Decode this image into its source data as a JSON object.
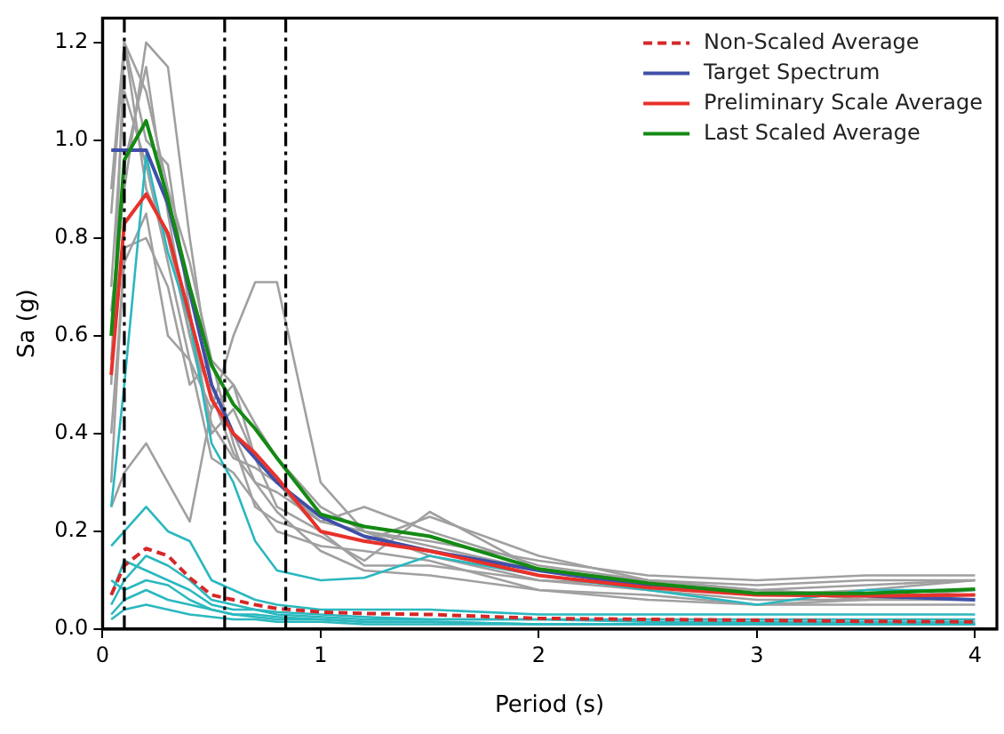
{
  "chart_data": {
    "type": "line",
    "xlabel": "Period (s)",
    "ylabel": "Sa (g)",
    "x": [
      0.04,
      0.1,
      0.2,
      0.3,
      0.4,
      0.5,
      0.6,
      0.7,
      0.8,
      1.0,
      1.2,
      1.5,
      2.0,
      2.5,
      3.0,
      3.5,
      4.0
    ],
    "xlim": [
      0,
      4.1
    ],
    "xticks": [
      0,
      1,
      2,
      3,
      4
    ],
    "ylim": [
      0,
      1.25
    ],
    "yticks": [
      {
        "value": 0,
        "label": "0.0"
      },
      {
        "value": 0.2,
        "label": "0.2"
      },
      {
        "value": 0.4,
        "label": "0.4"
      },
      {
        "value": 0.6,
        "label": "0.6"
      },
      {
        "value": 0.8,
        "label": "0.8"
      },
      {
        "value": 1.0,
        "label": "1.0"
      },
      {
        "value": 1.2,
        "label": "1.2"
      }
    ],
    "grid": false,
    "legend": "top right",
    "ref_lines": [
      {
        "axis": "x",
        "value": 0.1,
        "color": "#000000"
      },
      {
        "axis": "x",
        "value": 0.56,
        "color": "#000000"
      },
      {
        "axis": "x",
        "value": 0.84,
        "color": "#000000"
      }
    ],
    "series": [
      {
        "color": "#a0a0a0",
        "values": [
          0.9,
          1.2,
          1.1,
          0.9,
          0.75,
          0.55,
          0.5,
          0.42,
          0.35,
          0.25,
          0.2,
          0.17,
          0.12,
          0.09,
          0.07,
          0.08,
          0.1
        ]
      },
      {
        "color": "#a0a0a0",
        "values": [
          0.4,
          0.75,
          0.85,
          0.6,
          0.55,
          0.45,
          0.6,
          0.71,
          0.71,
          0.3,
          0.2,
          0.15,
          0.1,
          0.09,
          0.08,
          0.09,
          0.1
        ]
      },
      {
        "color": "#a0a0a0",
        "values": [
          0.25,
          0.32,
          0.38,
          0.3,
          0.22,
          0.45,
          0.5,
          0.35,
          0.25,
          0.2,
          0.13,
          0.13,
          0.1,
          0.08,
          0.06,
          0.06,
          0.08
        ]
      },
      {
        "color": "#a0a0a0",
        "values": [
          0.5,
          1.2,
          1.0,
          0.95,
          0.65,
          0.4,
          0.45,
          0.35,
          0.3,
          0.2,
          0.18,
          0.23,
          0.15,
          0.1,
          0.09,
          0.1,
          0.1
        ]
      },
      {
        "color": "#a0a0a0",
        "values": [
          0.65,
          0.9,
          1.2,
          1.15,
          0.8,
          0.5,
          0.4,
          0.3,
          0.28,
          0.22,
          0.25,
          0.2,
          0.13,
          0.1,
          0.08,
          0.07,
          0.07
        ]
      },
      {
        "color": "#a0a0a0",
        "values": [
          0.7,
          1.1,
          0.95,
          0.75,
          0.55,
          0.35,
          0.32,
          0.26,
          0.2,
          0.17,
          0.16,
          0.14,
          0.08,
          0.07,
          0.05,
          0.05,
          0.05
        ]
      },
      {
        "color": "#a0a0a0",
        "values": [
          0.3,
          0.78,
          0.8,
          0.7,
          0.5,
          0.55,
          0.38,
          0.25,
          0.22,
          0.19,
          0.14,
          0.24,
          0.12,
          0.1,
          0.08,
          0.06,
          0.06
        ]
      },
      {
        "color": "#a0a0a0",
        "values": [
          0.85,
          1.2,
          0.9,
          0.8,
          0.6,
          0.48,
          0.36,
          0.3,
          0.24,
          0.16,
          0.12,
          0.11,
          0.08,
          0.06,
          0.05,
          0.06,
          0.07
        ]
      },
      {
        "color": "#a0a0a0",
        "values": [
          0.55,
          0.95,
          1.15,
          0.85,
          0.6,
          0.42,
          0.35,
          0.33,
          0.3,
          0.22,
          0.2,
          0.18,
          0.14,
          0.11,
          0.1,
          0.11,
          0.11
        ]
      },
      {
        "color": "#2ab8bf",
        "values": [
          0.25,
          0.5,
          0.97,
          0.77,
          0.63,
          0.38,
          0.3,
          0.18,
          0.12,
          0.1,
          0.105,
          0.15,
          0.11,
          0.08,
          0.05,
          0.08,
          0.08
        ]
      },
      {
        "color": "#2ab8bf",
        "values": [
          0.17,
          0.2,
          0.25,
          0.2,
          0.18,
          0.1,
          0.08,
          0.06,
          0.05,
          0.04,
          0.04,
          0.04,
          0.03,
          0.03,
          0.03,
          0.03,
          0.03
        ]
      },
      {
        "color": "#2ab8bf",
        "values": [
          0.07,
          0.14,
          0.12,
          0.1,
          0.08,
          0.05,
          0.04,
          0.04,
          0.03,
          0.025,
          0.02,
          0.02,
          0.02,
          0.02,
          0.02,
          0.02,
          0.02
        ]
      },
      {
        "color": "#2ab8bf",
        "values": [
          0.05,
          0.1,
          0.15,
          0.13,
          0.1,
          0.06,
          0.05,
          0.04,
          0.035,
          0.03,
          0.025,
          0.02,
          0.02,
          0.015,
          0.015,
          0.015,
          0.015
        ]
      },
      {
        "color": "#2ab8bf",
        "values": [
          0.03,
          0.06,
          0.08,
          0.06,
          0.05,
          0.04,
          0.03,
          0.03,
          0.025,
          0.02,
          0.015,
          0.015,
          0.01,
          0.01,
          0.01,
          0.01,
          0.01
        ]
      },
      {
        "color": "#2ab8bf",
        "values": [
          0.1,
          0.08,
          0.1,
          0.09,
          0.06,
          0.04,
          0.03,
          0.025,
          0.02,
          0.02,
          0.015,
          0.015,
          0.01,
          0.01,
          0.01,
          0.01,
          0.01
        ]
      },
      {
        "color": "#2ab8bf",
        "values": [
          0.02,
          0.04,
          0.05,
          0.04,
          0.03,
          0.025,
          0.02,
          0.02,
          0.015,
          0.015,
          0.01,
          0.01,
          0.01,
          0.01,
          0.01,
          0.01,
          0.01
        ]
      },
      {
        "name": "Non-Scaled Average",
        "color": "#d62728",
        "line_style": "dashed",
        "values": [
          0.07,
          0.13,
          0.165,
          0.15,
          0.105,
          0.07,
          0.06,
          0.05,
          0.042,
          0.035,
          0.032,
          0.03,
          0.022,
          0.02,
          0.018,
          0.016,
          0.015
        ]
      },
      {
        "name": "Target Spectrum",
        "color": "#3f4fa8",
        "values": [
          0.98,
          0.98,
          0.98,
          0.87,
          0.69,
          0.5,
          0.4,
          0.35,
          0.3,
          0.23,
          0.19,
          0.16,
          0.12,
          0.088,
          0.072,
          0.068,
          0.06
        ]
      },
      {
        "name": "Preliminary Scale Average",
        "color": "#e8312a",
        "values": [
          0.52,
          0.83,
          0.89,
          0.81,
          0.64,
          0.47,
          0.4,
          0.36,
          0.31,
          0.2,
          0.18,
          0.16,
          0.11,
          0.085,
          0.07,
          0.068,
          0.07
        ]
      },
      {
        "name": "Last Scaled Average",
        "color": "#138a13",
        "values": [
          0.6,
          0.96,
          1.04,
          0.88,
          0.7,
          0.54,
          0.46,
          0.41,
          0.35,
          0.235,
          0.21,
          0.19,
          0.123,
          0.094,
          0.073,
          0.073,
          0.082
        ]
      }
    ]
  }
}
